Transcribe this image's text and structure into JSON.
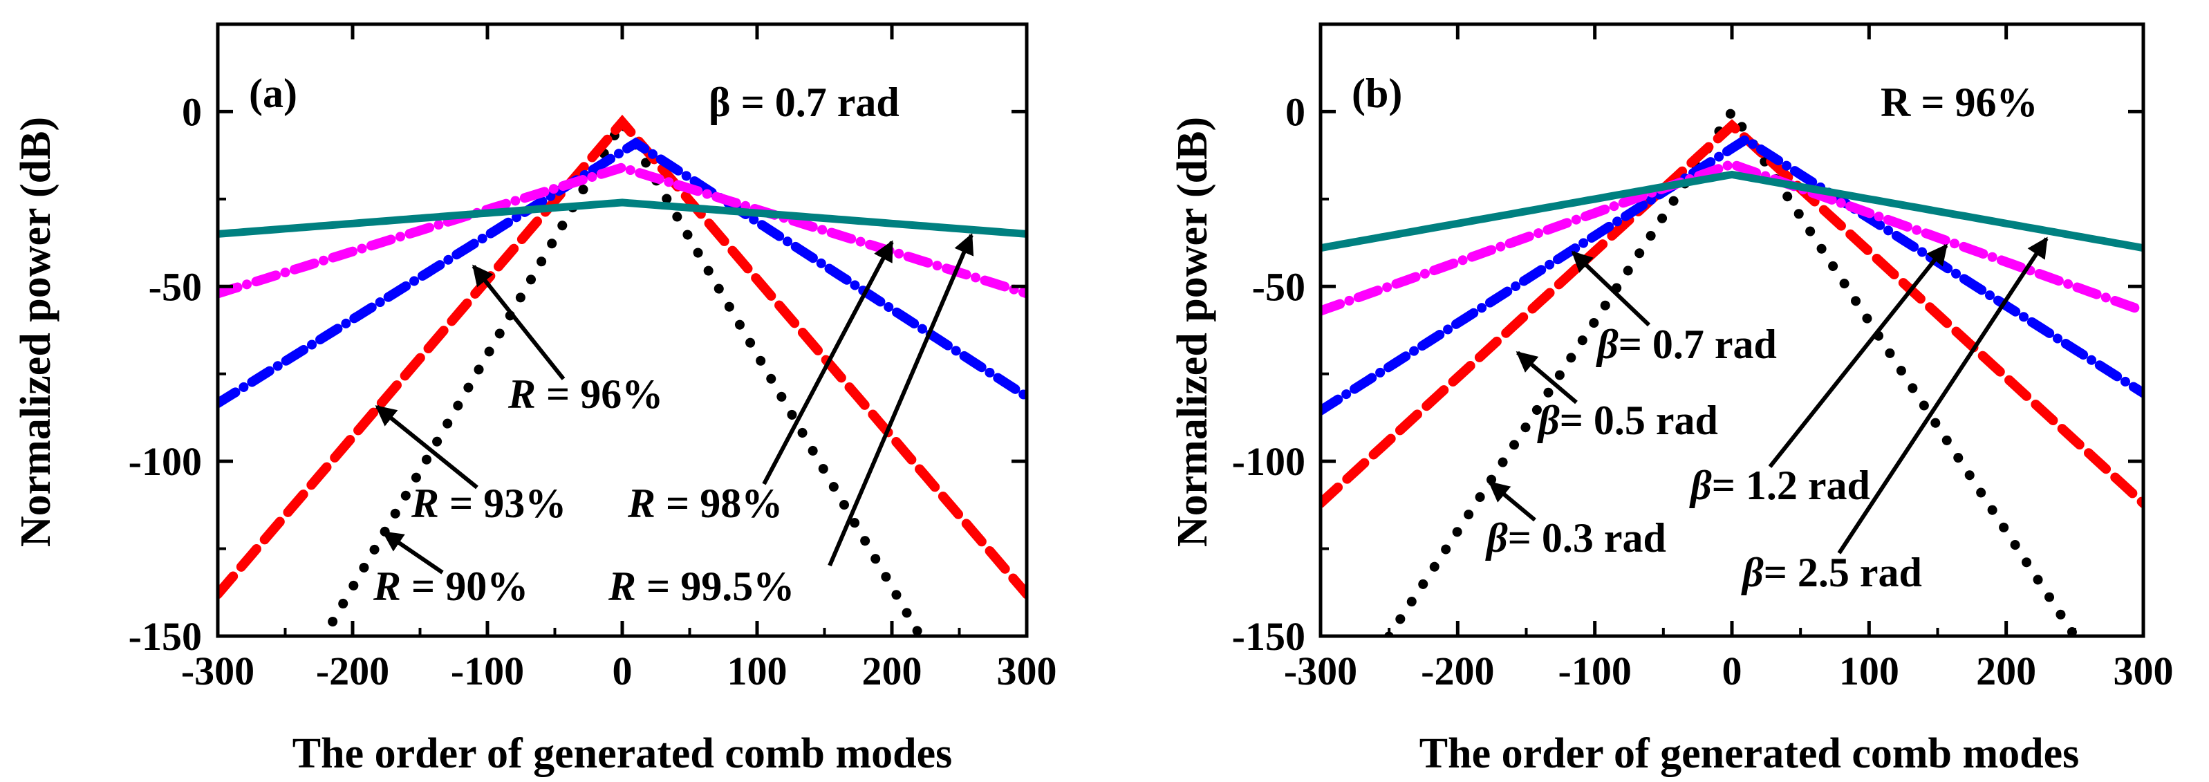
{
  "chart_data": [
    {
      "type": "line",
      "panel_label": "(a)",
      "param_label": "β = 0.7 rad",
      "xlabel": "The order of generated comb modes",
      "ylabel": "Normalized power (dB)",
      "xlim": [
        -300,
        300
      ],
      "ylim": [
        -150,
        25
      ],
      "xticks": [
        "-300",
        "-200",
        "-100",
        "0",
        "100",
        "200",
        "300"
      ],
      "yticks": [
        "0",
        "-50",
        "-100",
        "-150"
      ],
      "series": [
        {
          "name": "R = 90%",
          "color": "#000000",
          "style": "dotted",
          "peak_x": 0,
          "peak_y": -3,
          "left_slope": 0.665,
          "right_slope": 0.665
        },
        {
          "name": "R = 93%",
          "color": "#ff0000",
          "style": "dash",
          "peak_x": 0,
          "peak_y": -3,
          "left_slope": 0.45,
          "right_slope": 0.45
        },
        {
          "name": "R = 96%",
          "color": "#0000ff",
          "style": "dashdot",
          "peak_x": 10,
          "peak_y": -9,
          "left_slope": 0.24,
          "right_slope": 0.25
        },
        {
          "name": "R = 98%",
          "color": "#ff00ff",
          "style": "dashdot",
          "peak_x": 0,
          "peak_y": -16,
          "left_slope": 0.12,
          "right_slope": 0.12
        },
        {
          "name": "R = 99.5%",
          "color": "#008080",
          "style": "solid",
          "peak_x": 0,
          "peak_y": -26,
          "left_slope": 0.03,
          "right_slope": 0.03
        }
      ],
      "annotations": [
        {
          "prefix": "R",
          "text": " = 96%"
        },
        {
          "prefix": "R",
          "text": " = 93%"
        },
        {
          "prefix": "R",
          "text": " = 98%"
        },
        {
          "prefix": "R",
          "text": " = 90%"
        },
        {
          "prefix": "R",
          "text": " = 99.5%"
        }
      ]
    },
    {
      "type": "line",
      "panel_label": "(b)",
      "param_label": "R = 96%",
      "xlabel": "The order of generated comb modes",
      "ylabel": "Normalized power (dB)",
      "xlim": [
        -300,
        300
      ],
      "ylim": [
        -150,
        25
      ],
      "xticks": [
        "-300",
        "-200",
        "-100",
        "0",
        "100",
        "200",
        "300"
      ],
      "yticks": [
        "0",
        "-50",
        "-100",
        "-150"
      ],
      "series": [
        {
          "name": "β = 0.3 rad",
          "color": "#000000",
          "style": "dotted",
          "peak_x": 0,
          "peak_y": 0,
          "left_slope": 0.6,
          "right_slope": 0.6
        },
        {
          "name": "β = 0.5 rad",
          "color": "#ff0000",
          "style": "dash",
          "peak_x": 0,
          "peak_y": -4,
          "left_slope": 0.36,
          "right_slope": 0.36
        },
        {
          "name": "β = 0.7 rad",
          "color": "#0000ff",
          "style": "dashdot",
          "peak_x": 10,
          "peak_y": -8,
          "left_slope": 0.25,
          "right_slope": 0.25
        },
        {
          "name": "β = 1.2 rad",
          "color": "#ff00ff",
          "style": "dashdot",
          "peak_x": 0,
          "peak_y": -15,
          "left_slope": 0.14,
          "right_slope": 0.14
        },
        {
          "name": "β = 2.5 rad",
          "color": "#008080",
          "style": "solid",
          "peak_x": 0,
          "peak_y": -18,
          "left_slope": 0.07,
          "right_slope": 0.07
        }
      ],
      "annotations": [
        {
          "prefix": "β",
          "text": "= 0.7 rad"
        },
        {
          "prefix": "β",
          "text": "= 0.5 rad"
        },
        {
          "prefix": "β",
          "text": "= 0.3 rad"
        },
        {
          "prefix": "β",
          "text": "= 1.2 rad"
        },
        {
          "prefix": "β",
          "text": "= 2.5 rad"
        }
      ]
    }
  ]
}
